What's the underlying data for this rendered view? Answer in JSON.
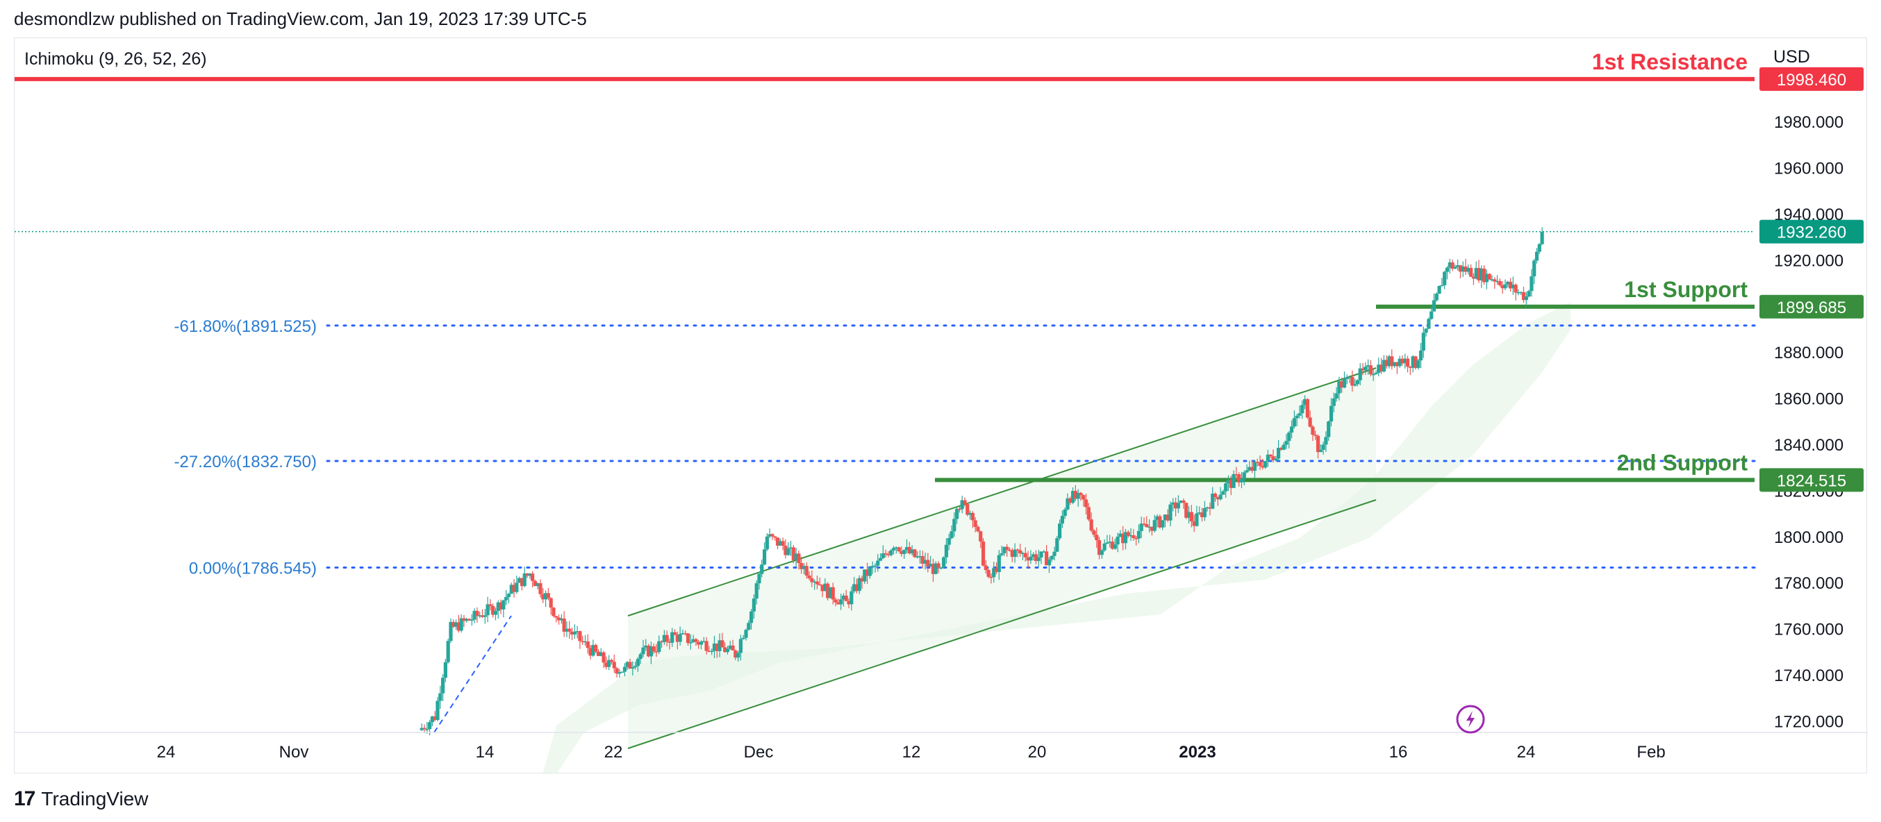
{
  "header": {
    "text": "desmondlzw published on TradingView.com, Jan 19, 2023 17:39 UTC-5"
  },
  "indicator": {
    "label": "Ichimoku (9, 26, 52, 26)"
  },
  "currency": "USD",
  "footer": {
    "brand": "TradingView",
    "logo_mark": "17"
  },
  "colors": {
    "up": "#26a69a",
    "down": "#ef5350",
    "resistance": "#f23645",
    "support": "#388e3c",
    "fib": "#2962ff",
    "fibText": "#2a7bd1",
    "current": "#089981",
    "cloud": "#e8f5e9",
    "axisText": "#131722"
  },
  "chart_data": {
    "type": "candlestick",
    "ylim": [
      1715,
      2010
    ],
    "y_ticks": [
      "1720.000",
      "1740.000",
      "1760.000",
      "1780.000",
      "1800.000",
      "1820.000",
      "1840.000",
      "1860.000",
      "1880.000",
      "1900.000",
      "1920.000",
      "1940.000",
      "1960.000",
      "1980.000"
    ],
    "x_ticks": [
      "24",
      "Nov",
      "14",
      "22",
      "Dec",
      "12",
      "20",
      "2023",
      "16",
      "24",
      "Feb"
    ],
    "levels": [
      {
        "name": "1st Resistance",
        "value": 1998.46,
        "value_label": "1998.460",
        "color": "#f23645"
      },
      {
        "name": "1st Support",
        "value": 1899.685,
        "value_label": "1899.685",
        "color": "#388e3c"
      },
      {
        "name": "2nd Support",
        "value": 1824.515,
        "value_label": "1824.515",
        "color": "#388e3c"
      }
    ],
    "current_price": {
      "value": 1932.26,
      "value_label": "1932.260"
    },
    "fib_levels": [
      {
        "label": "-61.80%(1891.525)",
        "value": 1891.525
      },
      {
        "label": "-27.20%(1832.750)",
        "value": 1832.75
      },
      {
        "label": "0.00%(1786.545)",
        "value": 1786.545
      }
    ],
    "price_path": [
      [
        "2022-11-09",
        1716
      ],
      [
        "2022-11-10",
        1722
      ],
      [
        "2022-11-11",
        1760
      ],
      [
        "2022-11-14",
        1770
      ],
      [
        "2022-11-15",
        1778
      ],
      [
        "2022-11-16",
        1784
      ],
      [
        "2022-11-17",
        1774
      ],
      [
        "2022-11-18",
        1762
      ],
      [
        "2022-11-21",
        1744
      ],
      [
        "2022-11-22",
        1742
      ],
      [
        "2022-11-23",
        1749
      ],
      [
        "2022-11-24",
        1752
      ],
      [
        "2022-11-25",
        1757
      ],
      [
        "2022-11-28",
        1752
      ],
      [
        "2022-11-29",
        1749
      ],
      [
        "2022-11-30",
        1768
      ],
      [
        "2022-12-01",
        1800
      ],
      [
        "2022-12-02",
        1796
      ],
      [
        "2022-12-05",
        1775
      ],
      [
        "2022-12-06",
        1771
      ],
      [
        "2022-12-07",
        1782
      ],
      [
        "2022-12-08",
        1788
      ],
      [
        "2022-12-09",
        1797
      ],
      [
        "2022-12-12",
        1784
      ],
      [
        "2022-12-13",
        1815
      ],
      [
        "2022-12-14",
        1810
      ],
      [
        "2022-12-15",
        1780
      ],
      [
        "2022-12-16",
        1794
      ],
      [
        "2022-12-19",
        1790
      ],
      [
        "2022-12-20",
        1818
      ],
      [
        "2022-12-21",
        1815
      ],
      [
        "2022-12-22",
        1795
      ],
      [
        "2022-12-23",
        1798
      ],
      [
        "2022-12-26",
        1807
      ],
      [
        "2022-12-27",
        1815
      ],
      [
        "2022-12-28",
        1806
      ],
      [
        "2022-12-29",
        1815
      ],
      [
        "2022-12-30",
        1822
      ],
      [
        "2023-01-02",
        1835
      ],
      [
        "2023-01-03",
        1845
      ],
      [
        "2023-01-04",
        1858
      ],
      [
        "2023-01-05",
        1835
      ],
      [
        "2023-01-06",
        1865
      ],
      [
        "2023-01-09",
        1875
      ],
      [
        "2023-01-10",
        1877
      ],
      [
        "2023-01-11",
        1875
      ],
      [
        "2023-01-12",
        1896
      ],
      [
        "2023-01-13",
        1918
      ],
      [
        "2023-01-16",
        1912
      ],
      [
        "2023-01-17",
        1908
      ],
      [
        "2023-01-18",
        1904
      ],
      [
        "2023-01-19",
        1932
      ]
    ]
  }
}
